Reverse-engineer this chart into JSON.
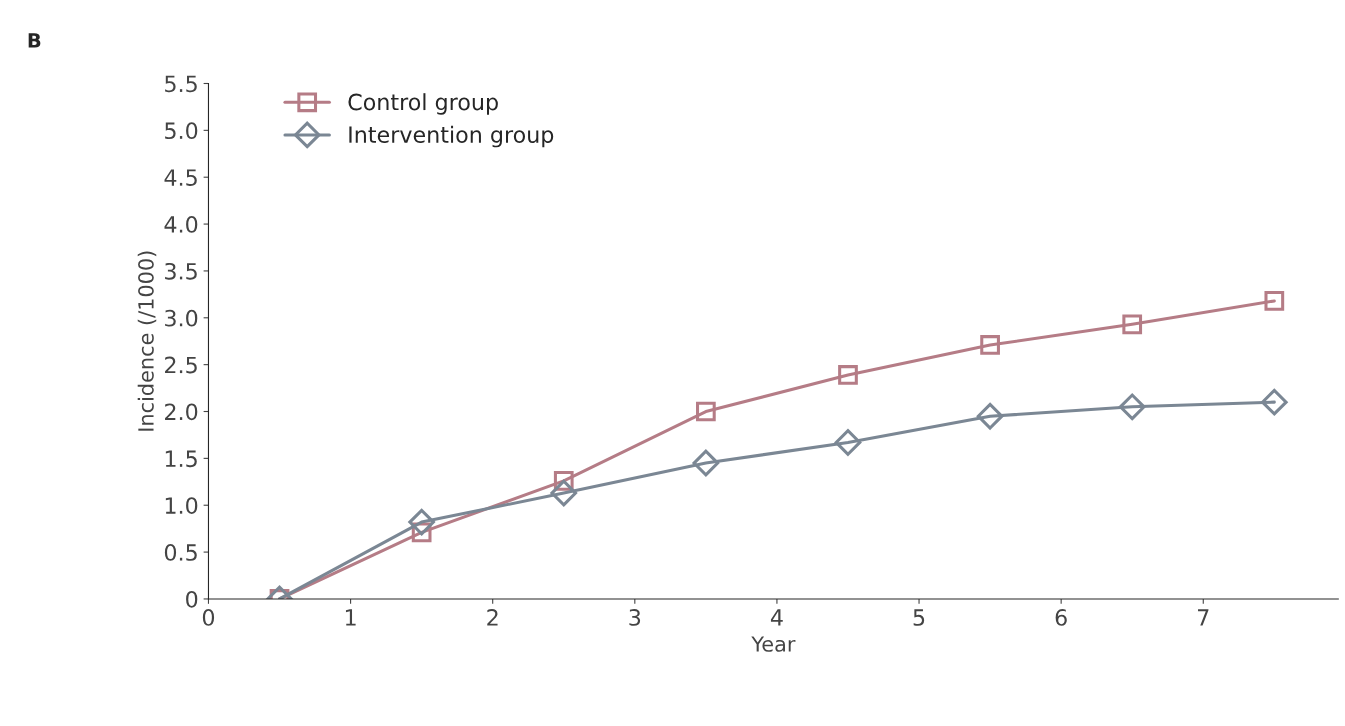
{
  "chart_data": {
    "type": "line",
    "title": "B",
    "xlabel": "Year",
    "ylabel": "Incidence (/1000)",
    "x": [
      0.5,
      1.5,
      2.5,
      3.5,
      4.5,
      5.5,
      6.5,
      7.5
    ],
    "series": [
      {
        "name": "Control group",
        "color": "#b57c86",
        "marker": "square",
        "values": [
          0,
          0.71,
          1.26,
          2.0,
          2.39,
          2.71,
          2.93,
          3.18
        ]
      },
      {
        "name": "Intervention group",
        "color": "#7b8794",
        "marker": "diamond",
        "values": [
          0,
          0.82,
          1.13,
          1.45,
          1.67,
          1.95,
          2.05,
          2.1
        ]
      }
    ],
    "xlim": [
      0,
      7.95
    ],
    "xticks": [
      0,
      1,
      2,
      3,
      4,
      5,
      6,
      7
    ],
    "ylim": [
      0,
      5.5
    ],
    "yticks": [
      0,
      0.5,
      {
        "value": 1,
        "label": "1.0"
      },
      1.5,
      {
        "value": 2,
        "label": "2.0"
      },
      2.5,
      {
        "value": 3,
        "label": "3.0"
      },
      3.5,
      {
        "value": 4,
        "label": "4.0"
      },
      4.5,
      {
        "value": 5,
        "label": "5.0"
      },
      5.5
    ],
    "grid": false,
    "legend": "top left",
    "line_style": "solid"
  }
}
